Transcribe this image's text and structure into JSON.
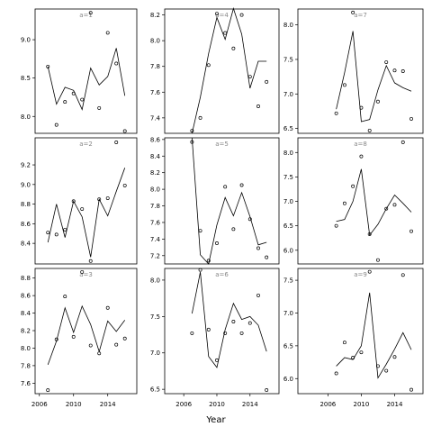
{
  "x_label": "Year",
  "chart_data": [
    {
      "type": "scatter",
      "title": "a=1",
      "x": [
        2007,
        2008,
        2009,
        2010,
        2011,
        2012,
        2013,
        2014,
        2015,
        2016
      ],
      "values": [
        8.65,
        7.89,
        8.19,
        8.3,
        8.22,
        9.35,
        8.11,
        9.09,
        8.69,
        7.81
      ],
      "line_values": [
        8.65,
        8.16,
        8.38,
        8.34,
        8.09,
        8.63,
        8.41,
        8.52,
        8.89,
        8.27
      ],
      "xlim": [
        2005.5,
        2017.4
      ],
      "ylim": [
        7.78,
        9.4
      ],
      "yticks": [
        {
          "value": 8,
          "label": "8.0"
        },
        8.5,
        {
          "value": 9,
          "label": "9.0"
        }
      ]
    },
    {
      "type": "scatter",
      "title": "a=2",
      "x": [
        2007,
        2008,
        2009,
        2010,
        2011,
        2012,
        2013,
        2014,
        2015,
        2016
      ],
      "values": [
        8.51,
        8.49,
        8.54,
        8.83,
        8.75,
        8.22,
        8.85,
        8.86,
        9.43,
        8.99
      ],
      "line_values": [
        8.41,
        8.8,
        8.46,
        8.83,
        8.67,
        8.26,
        8.85,
        8.68,
        8.93,
        9.17
      ],
      "xlim": [
        2005.5,
        2017.4
      ],
      "ylim": [
        8.19,
        9.476
      ],
      "yticks": [
        8.4,
        8.6,
        8.8,
        {
          "value": 9,
          "label": "9.0"
        },
        9.2
      ]
    },
    {
      "type": "scatter",
      "title": "a=3",
      "x": [
        2007,
        2008,
        2009,
        2010,
        2011,
        2012,
        2013,
        2014,
        2015,
        2016
      ],
      "values": [
        7.52,
        8.1,
        8.59,
        8.13,
        8.87,
        8.03,
        7.94,
        8.46,
        8.04,
        8.11
      ],
      "line_values": [
        7.81,
        8.08,
        8.46,
        8.18,
        8.48,
        8.27,
        7.96,
        8.31,
        8.19,
        8.32
      ],
      "xlim": [
        2005.5,
        2017.4
      ],
      "ylim": [
        7.48,
        8.91
      ],
      "yticks": [
        7.6,
        7.8,
        {
          "value": 8,
          "label": "8.0"
        },
        8.2,
        8.4,
        8.6,
        8.8
      ],
      "xticks": [
        2006,
        2010,
        2014
      ]
    },
    {
      "type": "scatter",
      "title": "a=4",
      "x": [
        2007,
        2008,
        2009,
        2010,
        2011,
        2012,
        2013,
        2014,
        2015,
        2016
      ],
      "values": [
        7.3,
        7.4,
        7.81,
        8.21,
        8.06,
        7.94,
        8.2,
        7.72,
        7.49,
        7.68
      ],
      "line_values": [
        7.28,
        7.56,
        7.9,
        8.18,
        8.01,
        8.25,
        8.05,
        7.63,
        7.84,
        7.84
      ],
      "xlim": [
        2003.7,
        2017.5
      ],
      "ylim": [
        7.28,
        8.246
      ],
      "yticks": [
        7.4,
        7.6,
        7.8,
        {
          "value": 8,
          "label": "8.0"
        },
        8.2
      ]
    },
    {
      "type": "scatter",
      "title": "a=5",
      "x": [
        2007,
        2008,
        2009,
        2010,
        2011,
        2012,
        2013,
        2014,
        2015,
        2016
      ],
      "values": [
        8.57,
        7.5,
        7.14,
        7.35,
        8.03,
        7.52,
        8.05,
        7.64,
        7.29,
        7.18
      ],
      "line_values": [
        8.62,
        7.21,
        7.1,
        7.57,
        7.9,
        7.68,
        7.96,
        7.67,
        7.33,
        7.36
      ],
      "xlim": [
        2003.7,
        2017.5
      ],
      "ylim": [
        7.1,
        8.62
      ],
      "yticks": [
        7.2,
        7.4,
        7.6,
        7.8,
        {
          "value": 8,
          "label": "8.0"
        },
        8.2,
        8.4,
        8.6
      ]
    },
    {
      "type": "scatter",
      "title": "a=6",
      "x": [
        2007,
        2008,
        2009,
        2010,
        2011,
        2012,
        2013,
        2014,
        2015,
        2016
      ],
      "values": [
        7.27,
        8.14,
        7.32,
        6.9,
        7.27,
        7.43,
        7.27,
        7.41,
        7.79,
        6.49
      ],
      "line_values": [
        7.54,
        8.11,
        6.95,
        6.8,
        7.32,
        7.68,
        7.46,
        7.5,
        7.38,
        7.02
      ],
      "xlim": [
        2003.7,
        2017.5
      ],
      "ylim": [
        6.44,
        8.16
      ],
      "yticks": [
        6.5,
        {
          "value": 7,
          "label": "7.0"
        },
        7.5,
        {
          "value": 8,
          "label": "8.0"
        }
      ],
      "xticks": [
        2006,
        2010,
        2014
      ]
    },
    {
      "type": "scatter",
      "title": "a=7",
      "x": [
        2007,
        2008,
        2009,
        2010,
        2011,
        2012,
        2013,
        2014,
        2015,
        2016
      ],
      "values": [
        6.72,
        7.13,
        8.18,
        6.8,
        6.47,
        6.89,
        7.46,
        7.34,
        7.33,
        6.64
      ],
      "line_values": [
        6.78,
        7.31,
        7.91,
        6.6,
        6.63,
        7.06,
        7.41,
        7.16,
        7.09,
        7.04
      ],
      "xlim": [
        2002.4,
        2017.4
      ],
      "ylim": [
        6.43,
        8.23
      ],
      "yticks": [
        6.5,
        {
          "value": 7,
          "label": "7.0"
        },
        7.5,
        {
          "value": 8,
          "label": "8.0"
        }
      ]
    },
    {
      "type": "scatter",
      "title": "a=8",
      "x": [
        2007,
        2008,
        2009,
        2010,
        2011,
        2012,
        2013,
        2014,
        2015,
        2016
      ],
      "values": [
        6.5,
        6.96,
        7.31,
        7.92,
        6.33,
        5.8,
        6.85,
        6.93,
        8.21,
        6.39
      ],
      "line_values": [
        6.59,
        6.63,
        7.0,
        7.66,
        6.31,
        6.53,
        6.85,
        7.13,
        6.96,
        6.78
      ],
      "xlim": [
        2002.4,
        2017.4
      ],
      "ylim": [
        5.72,
        8.3
      ],
      "yticks": [
        {
          "value": 6,
          "label": "6.0"
        },
        6.5,
        {
          "value": 7,
          "label": "7.0"
        },
        7.5,
        {
          "value": 8,
          "label": "8.0"
        }
      ]
    },
    {
      "type": "scatter",
      "title": "a=9",
      "x": [
        2007,
        2008,
        2009,
        2010,
        2011,
        2012,
        2013,
        2014,
        2015,
        2016
      ],
      "values": [
        6.08,
        6.55,
        6.32,
        6.4,
        7.63,
        6.19,
        6.12,
        6.33,
        7.58,
        5.83
      ],
      "line_values": [
        6.19,
        6.32,
        6.29,
        6.5,
        7.31,
        6.01,
        6.22,
        6.45,
        6.7,
        6.44
      ],
      "xlim": [
        2002.4,
        2017.4
      ],
      "ylim": [
        5.77,
        7.68
      ],
      "yticks": [
        {
          "value": 6,
          "label": "6.0"
        },
        6.5,
        {
          "value": 7,
          "label": "7.0"
        },
        7.5
      ],
      "xticks": [
        2006,
        2010,
        2014
      ]
    }
  ]
}
